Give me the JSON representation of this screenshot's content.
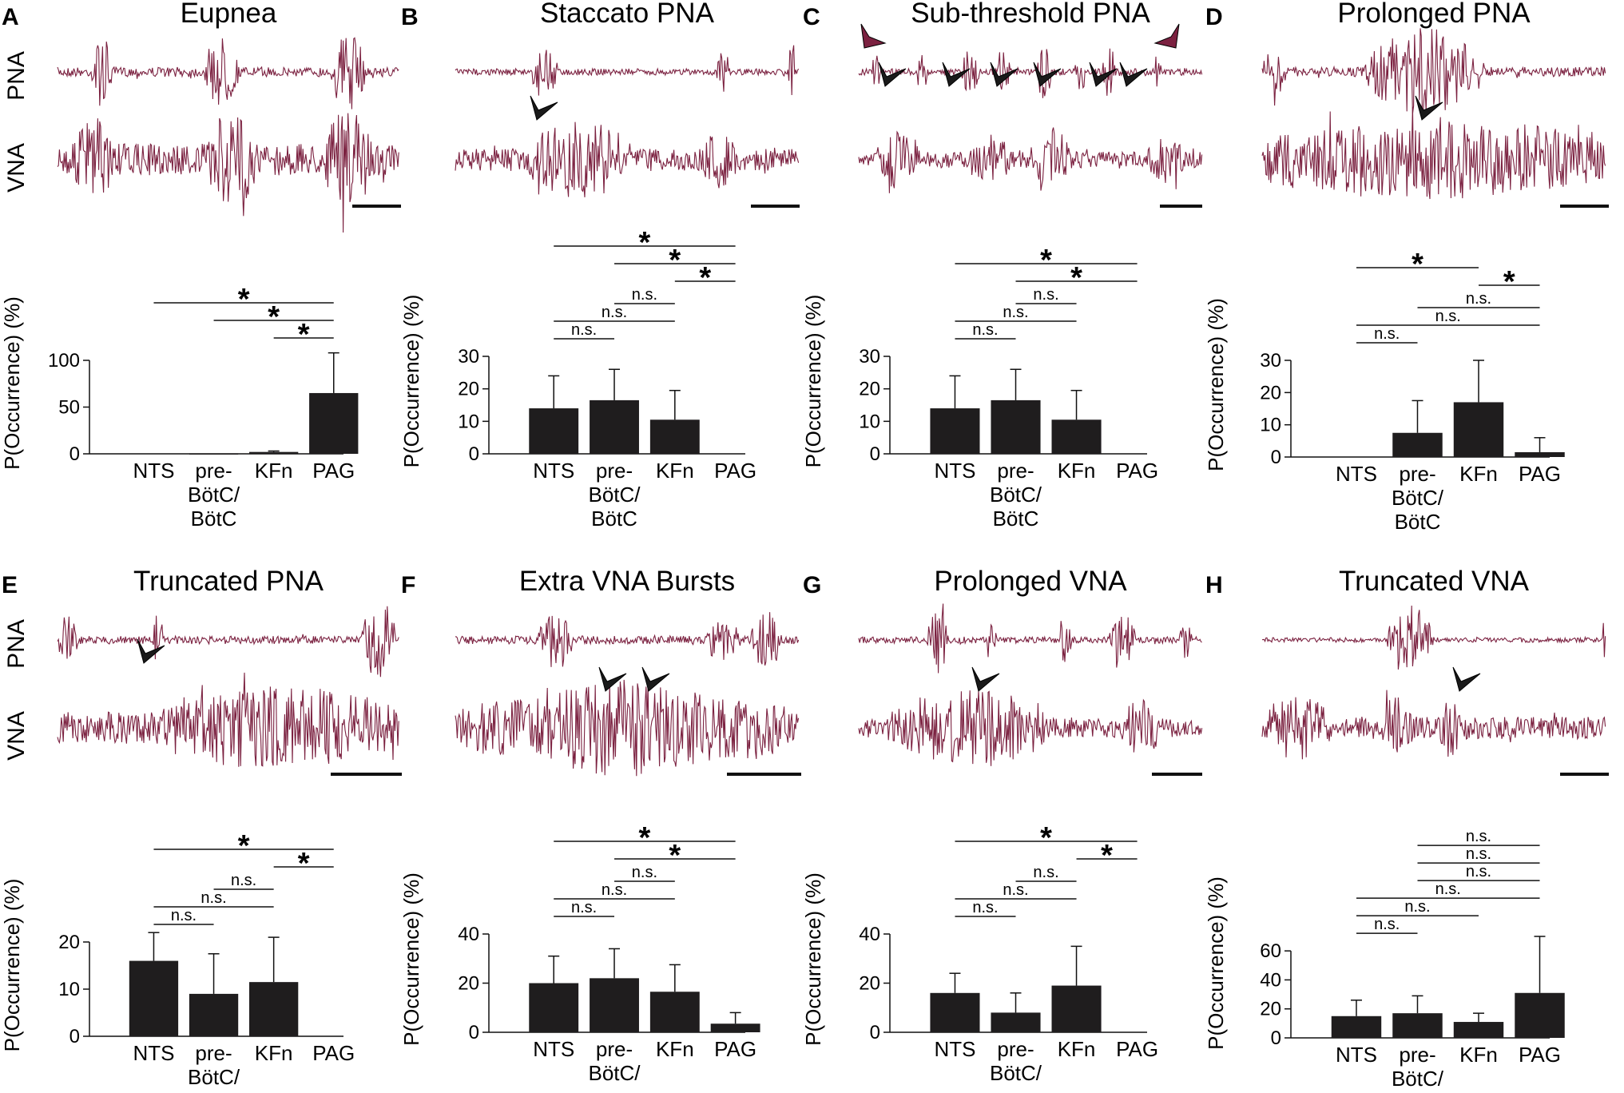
{
  "colors": {
    "trace": "#7b2140",
    "bar": "#1f1d1e",
    "arrow_dark": "#1a1a1a",
    "arrow_red": "#7b2140"
  },
  "trace_labels": {
    "pna": "PNA",
    "vna": "VNA"
  },
  "y_axis_label": "P(Occurrence) (%)",
  "categories": [
    "NTS",
    "pre-BötC/BötC",
    "KFn",
    "PAG"
  ],
  "category_lines": [
    [
      "NTS"
    ],
    [
      "pre-",
      "BötC/",
      "BötC"
    ],
    [
      "KFn"
    ],
    [
      "PAG"
    ]
  ],
  "sig_star": "*",
  "sig_ns": "n.s.",
  "panels": [
    {
      "letter": "A",
      "title": "Eupnea",
      "chart_data": {
        "type": "bar",
        "categories": [
          "NTS",
          "pre-BötC/BötC",
          "KFn",
          "PAG"
        ],
        "values": [
          0,
          0.5,
          2,
          65
        ],
        "errors": [
          0,
          0,
          1,
          43
        ],
        "ylim": [
          0,
          100
        ],
        "yticks": [
          0,
          50,
          100
        ],
        "comparisons": [
          {
            "from": 0,
            "to": 3,
            "label": "*"
          },
          {
            "from": 1,
            "to": 3,
            "label": "*"
          },
          {
            "from": 2,
            "to": 3,
            "label": "*"
          }
        ]
      }
    },
    {
      "letter": "B",
      "title": "Staccato PNA",
      "chart_data": {
        "type": "bar",
        "categories": [
          "NTS",
          "pre-BötC/BötC",
          "KFn",
          "PAG"
        ],
        "values": [
          14,
          16.5,
          10.5,
          0
        ],
        "errors": [
          10,
          9.5,
          9,
          0
        ],
        "ylim": [
          0,
          30
        ],
        "yticks": [
          0,
          10,
          20,
          30
        ],
        "comparisons": [
          {
            "from": 0,
            "to": 3,
            "label": "*"
          },
          {
            "from": 1,
            "to": 3,
            "label": "*"
          },
          {
            "from": 2,
            "to": 3,
            "label": "*"
          },
          {
            "from": 1,
            "to": 2,
            "label": "n.s."
          },
          {
            "from": 0,
            "to": 2,
            "label": "n.s."
          },
          {
            "from": 0,
            "to": 1,
            "label": "n.s."
          }
        ]
      }
    },
    {
      "letter": "C",
      "title": "Sub-threshold PNA",
      "chart_data": {
        "type": "bar",
        "categories": [
          "NTS",
          "pre-BötC/BötC",
          "KFn",
          "PAG"
        ],
        "values": [
          14,
          16.5,
          10.5,
          0
        ],
        "errors": [
          10,
          9.5,
          9,
          0
        ],
        "ylim": [
          0,
          30
        ],
        "yticks": [
          0,
          10,
          20,
          30
        ],
        "comparisons": [
          {
            "from": 0,
            "to": 3,
            "label": "*"
          },
          {
            "from": 1,
            "to": 3,
            "label": "*"
          },
          {
            "from": 1,
            "to": 2,
            "label": "n.s."
          },
          {
            "from": 0,
            "to": 2,
            "label": "n.s."
          },
          {
            "from": 0,
            "to": 1,
            "label": "n.s."
          }
        ]
      }
    },
    {
      "letter": "D",
      "title": "Prolonged PNA",
      "chart_data": {
        "type": "bar",
        "categories": [
          "NTS",
          "pre-BötC/BötC",
          "KFn",
          "PAG"
        ],
        "values": [
          0,
          7.5,
          17,
          1.5
        ],
        "errors": [
          0,
          10,
          13,
          4.5
        ],
        "ylim": [
          0,
          30
        ],
        "yticks": [
          0,
          10,
          20,
          30
        ],
        "comparisons": [
          {
            "from": 0,
            "to": 2,
            "label": "*"
          },
          {
            "from": 2,
            "to": 3,
            "label": "*"
          },
          {
            "from": 1,
            "to": 3,
            "label": "n.s."
          },
          {
            "from": 0,
            "to": 3,
            "label": "n.s."
          },
          {
            "from": 0,
            "to": 1,
            "label": "n.s."
          }
        ]
      }
    },
    {
      "letter": "E",
      "title": "Truncated PNA",
      "chart_data": {
        "type": "bar",
        "categories": [
          "NTS",
          "pre-BötC/BötC",
          "KFn",
          "PAG"
        ],
        "values": [
          16,
          9,
          11.5,
          0
        ],
        "errors": [
          6,
          8.5,
          9.5,
          0
        ],
        "ylim": [
          0,
          20
        ],
        "yticks": [
          0,
          10,
          20
        ],
        "comparisons": [
          {
            "from": 0,
            "to": 3,
            "label": "*"
          },
          {
            "from": 2,
            "to": 3,
            "label": "*"
          },
          {
            "from": 1,
            "to": 2,
            "label": "n.s."
          },
          {
            "from": 0,
            "to": 2,
            "label": "n.s."
          },
          {
            "from": 0,
            "to": 1,
            "label": "n.s."
          }
        ]
      }
    },
    {
      "letter": "F",
      "title": "Extra VNA Bursts",
      "chart_data": {
        "type": "bar",
        "categories": [
          "NTS",
          "pre-BötC/BötC",
          "KFn",
          "PAG"
        ],
        "values": [
          20,
          22,
          16.5,
          3.5
        ],
        "errors": [
          11,
          12,
          11,
          4.5
        ],
        "ylim": [
          0,
          40
        ],
        "yticks": [
          0,
          20,
          40
        ],
        "comparisons": [
          {
            "from": 0,
            "to": 3,
            "label": "*"
          },
          {
            "from": 1,
            "to": 3,
            "label": "*"
          },
          {
            "from": 1,
            "to": 2,
            "label": "n.s."
          },
          {
            "from": 0,
            "to": 2,
            "label": "n.s."
          },
          {
            "from": 0,
            "to": 1,
            "label": "n.s."
          }
        ]
      }
    },
    {
      "letter": "G",
      "title": "Prolonged VNA",
      "chart_data": {
        "type": "bar",
        "categories": [
          "NTS",
          "pre-BötC/BötC",
          "KFn",
          "PAG"
        ],
        "values": [
          16,
          8,
          19,
          0
        ],
        "errors": [
          8,
          8,
          16,
          0
        ],
        "ylim": [
          0,
          40
        ],
        "yticks": [
          0,
          20,
          40
        ],
        "comparisons": [
          {
            "from": 0,
            "to": 3,
            "label": "*"
          },
          {
            "from": 2,
            "to": 3,
            "label": "*"
          },
          {
            "from": 1,
            "to": 2,
            "label": "n.s."
          },
          {
            "from": 0,
            "to": 2,
            "label": "n.s."
          },
          {
            "from": 0,
            "to": 1,
            "label": "n.s."
          }
        ]
      }
    },
    {
      "letter": "H",
      "title": "Truncated VNA",
      "chart_data": {
        "type": "bar",
        "categories": [
          "NTS",
          "pre-BötC/BötC",
          "KFn",
          "PAG"
        ],
        "values": [
          15,
          17,
          11,
          31
        ],
        "errors": [
          11,
          12,
          6,
          39
        ],
        "ylim": [
          0,
          70
        ],
        "yticks": [
          0,
          20,
          40,
          60
        ],
        "comparisons": [
          {
            "from": 1,
            "to": 3,
            "label": "n.s."
          },
          {
            "from": 1,
            "to": 3,
            "label": "n.s."
          },
          {
            "from": 1,
            "to": 3,
            "label": "n.s."
          },
          {
            "from": 0,
            "to": 3,
            "label": "n.s."
          },
          {
            "from": 0,
            "to": 2,
            "label": "n.s."
          },
          {
            "from": 0,
            "to": 1,
            "label": "n.s."
          }
        ]
      }
    }
  ]
}
